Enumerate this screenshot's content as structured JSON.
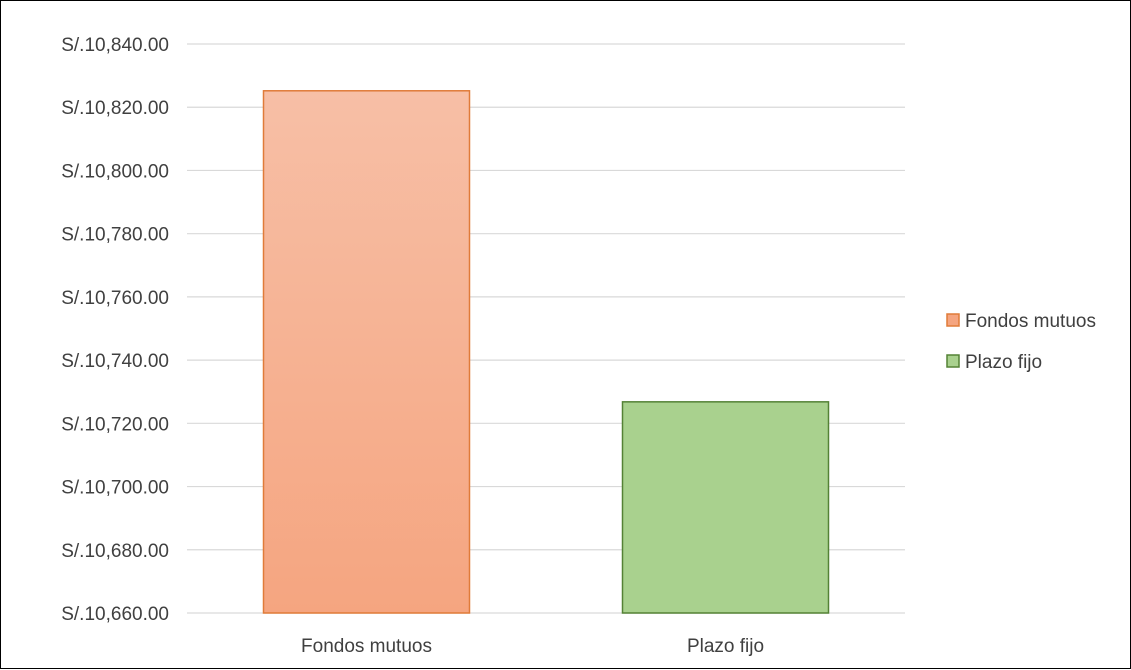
{
  "chart_data": {
    "type": "bar",
    "categories": [
      "Fondos mutuos",
      "Plazo fijo"
    ],
    "values": [
      10825.2,
      10726.8
    ],
    "title": "",
    "xlabel": "",
    "ylabel": "",
    "ylim": [
      10660,
      10840
    ],
    "yticks": [
      "S/.10,660.00",
      "S/.10,680.00",
      "S/.10,700.00",
      "S/.10,720.00",
      "S/.10,740.00",
      "S/.10,760.00",
      "S/.10,780.00",
      "S/.10,800.00",
      "S/.10,820.00",
      "S/.10,840.00"
    ],
    "grid": true,
    "legend_position": "right",
    "legend": [
      "Fondos mutuos",
      "Plazo fijo"
    ],
    "colors": {
      "Fondos mutuos": {
        "fill_top": "#f7bfa6",
        "fill_bottom": "#f5a580",
        "stroke": "#e07b39"
      },
      "Plazo fijo": {
        "fill": "#a9d18e",
        "stroke": "#548235"
      }
    }
  }
}
